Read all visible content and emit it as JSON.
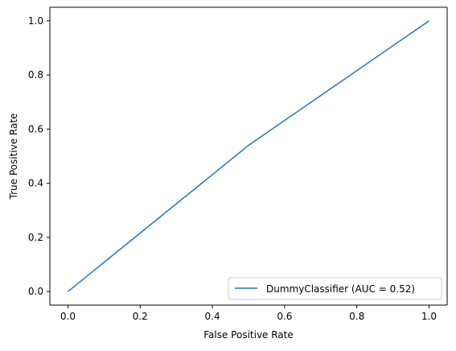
{
  "chart_data": {
    "type": "line",
    "title": "",
    "xlabel": "False Positive Rate",
    "ylabel": "True Positive Rate",
    "xlim": [
      -0.05,
      1.05
    ],
    "ylim": [
      -0.05,
      1.05
    ],
    "xticks": [
      0.0,
      0.2,
      0.4,
      0.6,
      0.8,
      1.0
    ],
    "yticks": [
      0.0,
      0.2,
      0.4,
      0.6,
      0.8,
      1.0
    ],
    "xtick_labels": [
      "0.0",
      "0.2",
      "0.4",
      "0.6",
      "0.8",
      "1.0"
    ],
    "ytick_labels": [
      "0.0",
      "0.2",
      "0.4",
      "0.6",
      "0.8",
      "1.0"
    ],
    "grid": false,
    "legend_position": "lower-right",
    "series": [
      {
        "name": "DummyClassifier (AUC = 0.52)",
        "color": "#1f77b4",
        "x": [
          0.0,
          0.5,
          1.0
        ],
        "y": [
          0.0,
          0.54,
          1.0
        ]
      }
    ]
  }
}
